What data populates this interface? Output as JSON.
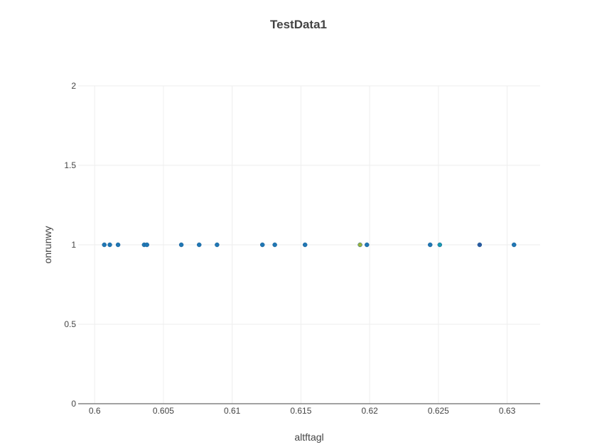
{
  "chart_data": {
    "type": "scatter",
    "title": "TestData1",
    "xlabel": "altftagl",
    "ylabel": "onrunwy",
    "xlim": [
      0.5988,
      0.6324
    ],
    "ylim": [
      0,
      2
    ],
    "xticks": [
      0.6,
      0.605,
      0.61,
      0.615,
      0.62,
      0.625,
      0.63
    ],
    "xtick_labels": [
      "0.6",
      "0.605",
      "0.61",
      "0.615",
      "0.62",
      "0.625",
      "0.63"
    ],
    "yticks": [
      0,
      0.5,
      1,
      1.5,
      2
    ],
    "ytick_labels": [
      "0",
      "0.5",
      "1",
      "1.5",
      "2"
    ],
    "grid": true,
    "series": [
      {
        "points": [
          {
            "x": 0.6007,
            "y": 1,
            "color": "#1f77b4"
          },
          {
            "x": 0.6011,
            "y": 1,
            "color": "#1f77b4"
          },
          {
            "x": 0.6017,
            "y": 1,
            "color": "#1f77b4"
          },
          {
            "x": 0.6036,
            "y": 1,
            "color": "#1f77b4"
          },
          {
            "x": 0.6038,
            "y": 1,
            "color": "#1f77b4"
          },
          {
            "x": 0.6063,
            "y": 1,
            "color": "#1f77b4"
          },
          {
            "x": 0.6076,
            "y": 1,
            "color": "#1f77b4"
          },
          {
            "x": 0.6089,
            "y": 1,
            "color": "#1f77b4"
          },
          {
            "x": 0.6122,
            "y": 1,
            "color": "#1f77b4"
          },
          {
            "x": 0.6131,
            "y": 1,
            "color": "#1f77b4"
          },
          {
            "x": 0.6153,
            "y": 1,
            "color": "#1f77b4"
          },
          {
            "x": 0.6193,
            "y": 1,
            "color": "#9ab33a"
          },
          {
            "x": 0.6198,
            "y": 1,
            "color": "#1f77b4"
          },
          {
            "x": 0.6244,
            "y": 1,
            "color": "#1f77b4"
          },
          {
            "x": 0.6251,
            "y": 1,
            "color": "#1a9ab0"
          },
          {
            "x": 0.628,
            "y": 1,
            "color": "#2a5aa0"
          },
          {
            "x": 0.6305,
            "y": 1,
            "color": "#1f77b4"
          }
        ]
      }
    ]
  }
}
